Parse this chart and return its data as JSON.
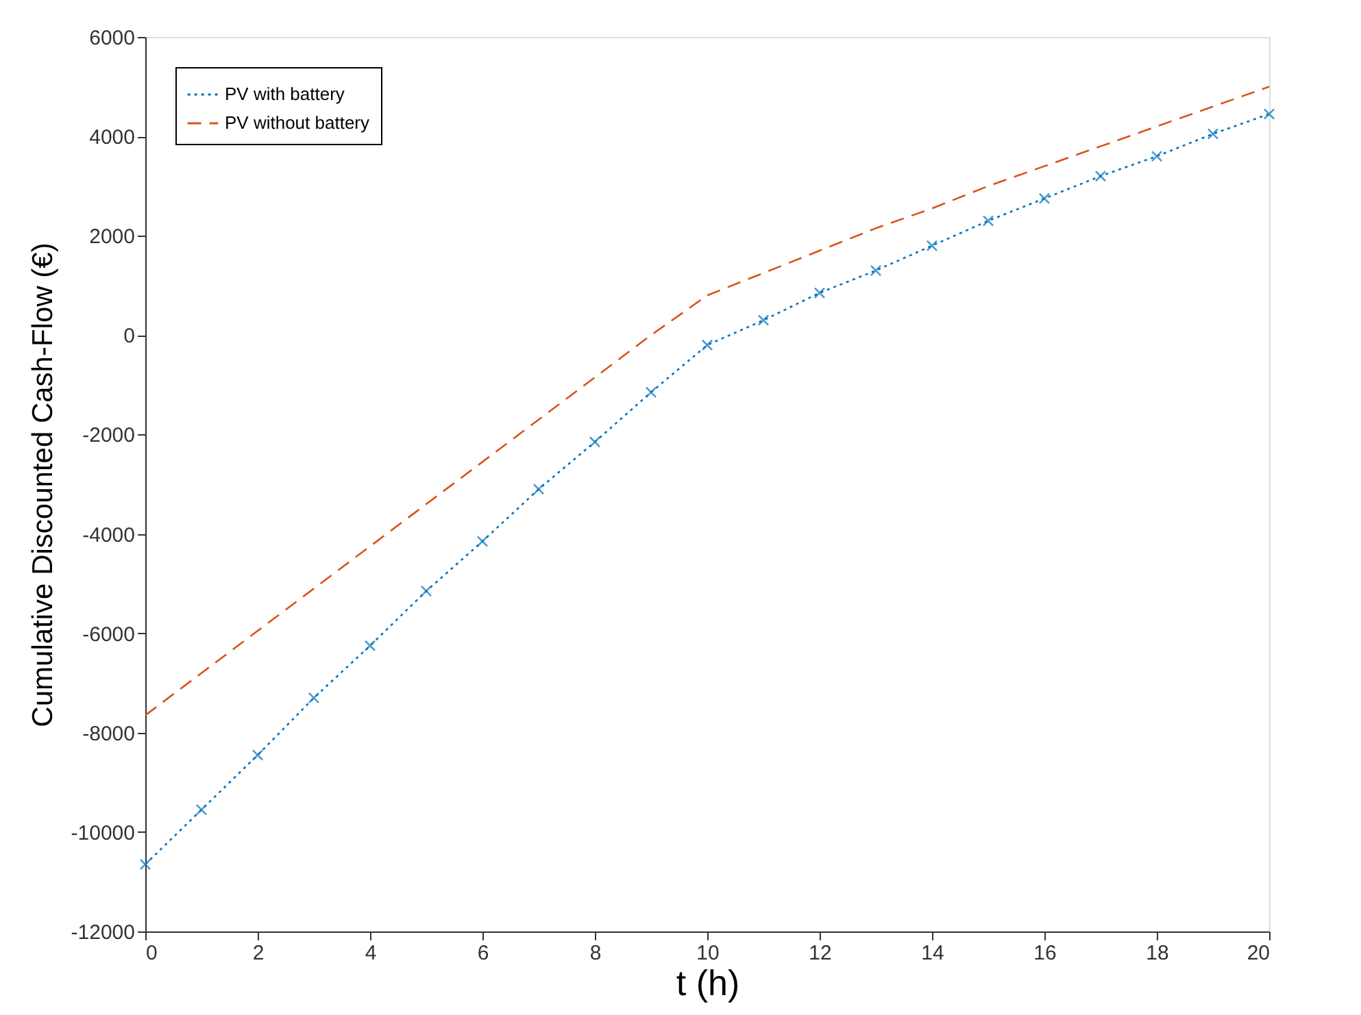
{
  "chart_data": {
    "type": "line",
    "xlabel": "t (h)",
    "ylabel": "Cumulative Discounted Cash-Flow (€)",
    "x": [
      0,
      1,
      2,
      3,
      4,
      5,
      6,
      7,
      8,
      9,
      10,
      11,
      12,
      13,
      14,
      15,
      16,
      17,
      18,
      19,
      20
    ],
    "series": [
      {
        "name": "PV with battery",
        "color": "#0072bd",
        "marker": "cross",
        "line_style": "dotted",
        "values": [
          -10650,
          -9550,
          -8450,
          -7300,
          -6250,
          -5150,
          -4150,
          -3100,
          -2150,
          -1150,
          -200,
          300,
          850,
          1300,
          1800,
          2300,
          2750,
          3200,
          3600,
          4050,
          4450
        ]
      },
      {
        "name": "PV without battery",
        "color": "#d95319",
        "marker": "none",
        "line_style": "dashed",
        "values": [
          -7650,
          -6800,
          -5950,
          -5100,
          -4250,
          -3400,
          -2550,
          -1700,
          -850,
          0,
          800,
          1250,
          1700,
          2150,
          2550,
          3000,
          3400,
          3800,
          4200,
          4600,
          5000
        ]
      }
    ],
    "xlim": [
      0,
      20
    ],
    "xticks": [
      0,
      2,
      4,
      6,
      8,
      10,
      12,
      14,
      16,
      18,
      20
    ],
    "ylim": [
      -12000,
      6000
    ],
    "yticks": [
      -12000,
      -10000,
      -8000,
      -6000,
      -4000,
      -2000,
      0,
      2000,
      4000,
      6000
    ],
    "grid": false,
    "legend": "top left"
  }
}
